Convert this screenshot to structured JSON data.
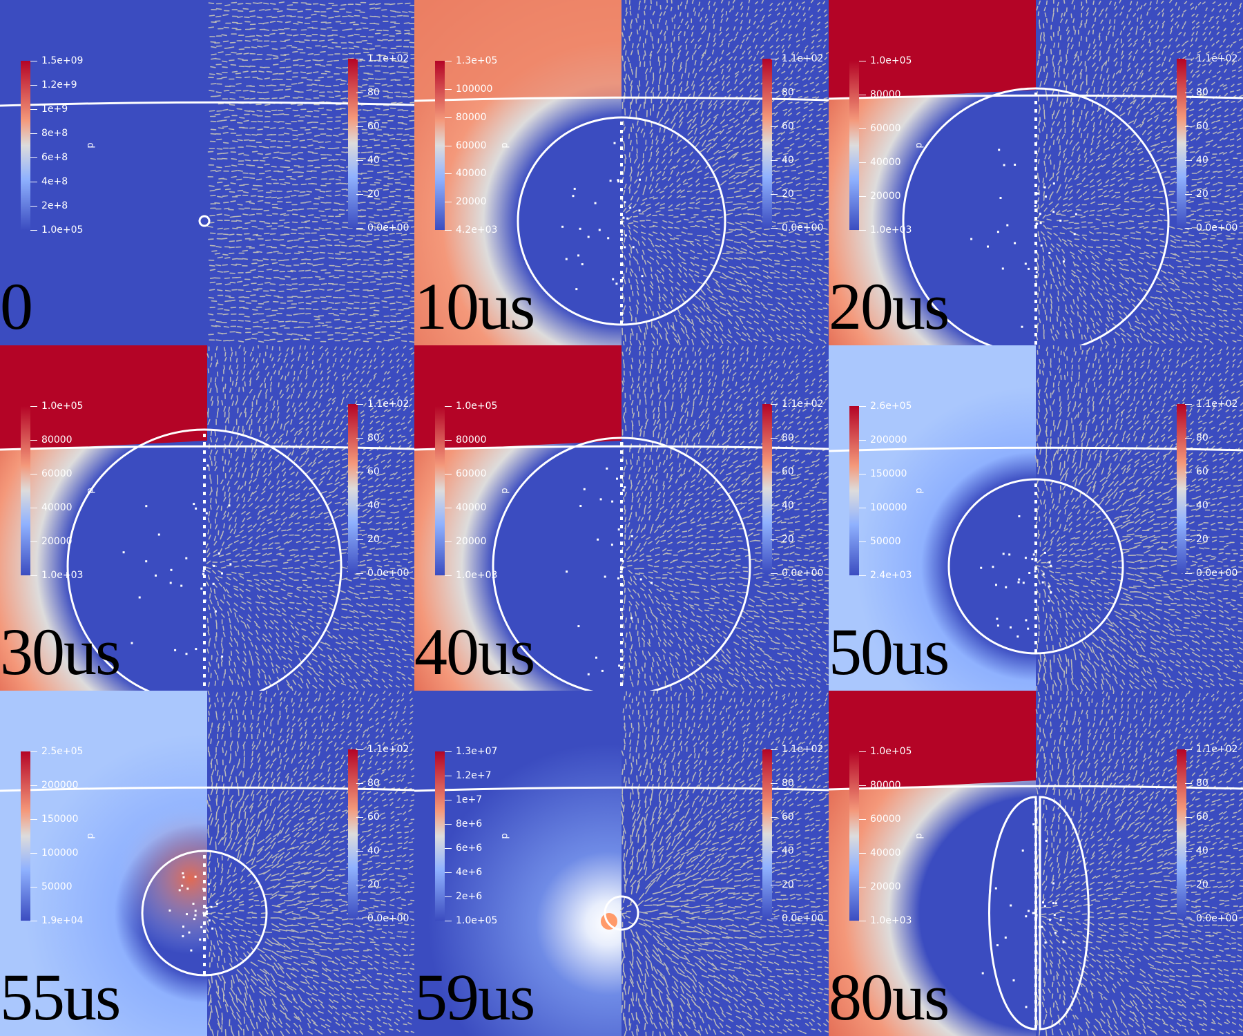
{
  "colors": {
    "cool_dark": "#3b4cc0",
    "cool_light": "#aac7fd",
    "neutral": "#dddcdc",
    "warm_light": "#f4987a",
    "warm_dark": "#b40426",
    "vector_gray": "#b8b8b8",
    "contour": "#ffffff"
  },
  "panels": [
    {
      "time_label": "0",
      "pressure_bar": {
        "name": "p",
        "ticks": [
          "1.5e+09",
          "1.2e+9",
          "1e+9",
          "8e+8",
          "6e+8",
          "4e+8",
          "2e+8",
          "1.0e+05"
        ]
      },
      "velocity_bar": {
        "ticks": [
          "1.1e+02",
          "80",
          "60",
          "40",
          "20",
          "0.0e+00"
        ]
      },
      "field": "uniform-low",
      "bubble_radius_frac": 0.012
    },
    {
      "time_label": "10us",
      "pressure_bar": {
        "name": "p",
        "ticks": [
          "1.3e+05",
          "100000",
          "80000",
          "60000",
          "40000",
          "20000",
          "4.2e+03"
        ]
      },
      "velocity_bar": {
        "ticks": [
          "1.1e+02",
          "80",
          "60",
          "40",
          "20",
          "0.0e+00"
        ]
      },
      "field": "warm-gradient",
      "bubble_radius_frac": 0.25
    },
    {
      "time_label": "20us",
      "pressure_bar": {
        "name": "p",
        "ticks": [
          "1.0e+05",
          "80000",
          "60000",
          "40000",
          "20000",
          "1.0e+03"
        ]
      },
      "velocity_bar": {
        "ticks": [
          "1.1e+02",
          "80",
          "60",
          "40",
          "20",
          "0.0e+00"
        ]
      },
      "field": "hot-top",
      "bubble_radius_frac": 0.32
    },
    {
      "time_label": "30us",
      "pressure_bar": {
        "name": "p",
        "ticks": [
          "1.0e+05",
          "80000",
          "60000",
          "40000",
          "20000",
          "1.0e+03"
        ]
      },
      "velocity_bar": {
        "ticks": [
          "1.1e+02",
          "80",
          "60",
          "40",
          "20",
          "0.0e+00"
        ]
      },
      "field": "hot-top",
      "bubble_radius_frac": 0.33
    },
    {
      "time_label": "40us",
      "pressure_bar": {
        "name": "p",
        "ticks": [
          "1.0e+05",
          "80000",
          "60000",
          "40000",
          "20000",
          "1.0e+03"
        ]
      },
      "velocity_bar": {
        "ticks": [
          "1.1e+02",
          "80",
          "60",
          "40",
          "20",
          "0.0e+00"
        ]
      },
      "field": "hot-top",
      "bubble_radius_frac": 0.31
    },
    {
      "time_label": "50us",
      "pressure_bar": {
        "name": "p",
        "ticks": [
          "2.6e+05",
          "200000",
          "150000",
          "100000",
          "50000",
          "2.4e+03"
        ]
      },
      "velocity_bar": {
        "ticks": [
          "1.1e+02",
          "80",
          "60",
          "40",
          "20",
          "0.0e+00"
        ]
      },
      "field": "light-blue",
      "bubble_radius_frac": 0.21
    },
    {
      "time_label": "55us",
      "pressure_bar": {
        "name": "p",
        "ticks": [
          "2.5e+05",
          "200000",
          "150000",
          "100000",
          "50000",
          "1.9e+04"
        ]
      },
      "velocity_bar": {
        "ticks": [
          "1.1e+02",
          "80",
          "60",
          "40",
          "20",
          "0.0e+00"
        ]
      },
      "field": "light-blue-hot",
      "bubble_radius_frac": 0.15
    },
    {
      "time_label": "59us",
      "pressure_bar": {
        "name": "p",
        "ticks": [
          "1.3e+07",
          "1.2e+7",
          "1e+7",
          "8e+6",
          "6e+6",
          "4e+6",
          "2e+6",
          "1.0e+05"
        ]
      },
      "velocity_bar": {
        "ticks": [
          "1.1e+02",
          "80",
          "60",
          "40",
          "20",
          "0.0e+00"
        ]
      },
      "field": "collapse",
      "bubble_radius_frac": 0.04
    },
    {
      "time_label": "80us",
      "pressure_bar": {
        "name": "p",
        "ticks": [
          "1.0e+05",
          "80000",
          "60000",
          "40000",
          "20000",
          "1.0e+03"
        ]
      },
      "velocity_bar": {
        "ticks": [
          "1.1e+02",
          "80",
          "60",
          "40",
          "20",
          "0.0e+00"
        ]
      },
      "field": "hot-top",
      "bubble_radius_frac": 0.28
    }
  ]
}
